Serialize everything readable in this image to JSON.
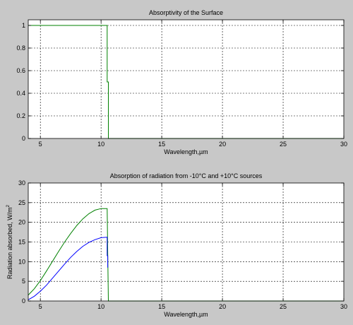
{
  "chart_data": [
    {
      "type": "line",
      "title": "Absorptivity of the Surface",
      "xlabel": "Wavelength,µm",
      "ylabel": "",
      "xlim": [
        4,
        30
      ],
      "ylim": [
        0,
        1.05
      ],
      "xticks": [
        "5",
        "10",
        "15",
        "20",
        "25",
        "30"
      ],
      "yticks": [
        "0",
        "0.2",
        "0.4",
        "0.6",
        "0.8",
        "1"
      ],
      "grid": true,
      "series": [
        {
          "color": "#008000",
          "x": [
            4,
            10.5,
            10.5,
            10.6,
            10.6,
            30
          ],
          "y": [
            1,
            1,
            0.5,
            0.5,
            0,
            0
          ]
        }
      ]
    },
    {
      "type": "line",
      "title": "Absorption of radiation from -10°C and +10°C sources",
      "xlabel": "Wavelength,µm",
      "ylabel": "Radiation absorbed, W/m",
      "ylabel_sup": "2",
      "xlim": [
        4,
        30
      ],
      "ylim": [
        0,
        30
      ],
      "xticks": [
        "5",
        "10",
        "15",
        "20",
        "25",
        "30"
      ],
      "yticks": [
        "0",
        "5",
        "10",
        "15",
        "20",
        "25",
        "30"
      ],
      "grid": true,
      "series": [
        {
          "color": "#008000",
          "x": [
            4,
            4.5,
            5,
            5.5,
            6,
            6.5,
            7,
            7.5,
            8,
            8.5,
            9,
            9.5,
            10,
            10.5,
            10.55,
            10.6,
            30
          ],
          "y": [
            1.5,
            3.1,
            5.2,
            7.6,
            10.1,
            12.6,
            15,
            17.2,
            19.2,
            20.9,
            22.2,
            23.1,
            23.5,
            23.5,
            12,
            0,
            0
          ]
        },
        {
          "color": "#0000ff",
          "x": [
            4,
            4.5,
            5,
            5.5,
            6,
            6.5,
            7,
            7.5,
            8,
            8.5,
            9,
            9.5,
            10,
            10.5,
            10.5,
            10.55,
            10.55
          ],
          "y": [
            0.3,
            1.2,
            2.5,
            4,
            5.8,
            7.6,
            9.4,
            11.1,
            12.6,
            13.9,
            14.9,
            15.6,
            16.1,
            16.2,
            11.5,
            11.5,
            8.5
          ]
        }
      ]
    }
  ]
}
